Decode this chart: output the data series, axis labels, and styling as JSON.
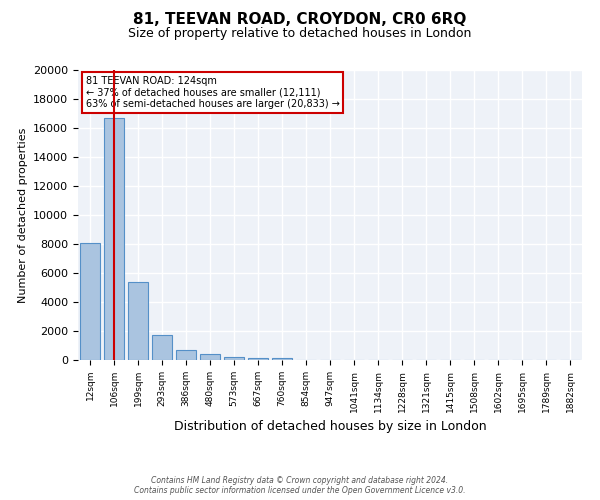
{
  "title": "81, TEEVAN ROAD, CROYDON, CR0 6RQ",
  "subtitle": "Size of property relative to detached houses in London",
  "xlabel": "Distribution of detached houses by size in London",
  "ylabel": "Number of detached properties",
  "bin_labels": [
    "12sqm",
    "106sqm",
    "199sqm",
    "293sqm",
    "386sqm",
    "480sqm",
    "573sqm",
    "667sqm",
    "760sqm",
    "854sqm",
    "947sqm",
    "1041sqm",
    "1134sqm",
    "1228sqm",
    "1321sqm",
    "1415sqm",
    "1508sqm",
    "1602sqm",
    "1695sqm",
    "1789sqm",
    "1882sqm"
  ],
  "bar_values": [
    8050,
    16700,
    5350,
    1750,
    720,
    380,
    220,
    170,
    160,
    0,
    0,
    0,
    0,
    0,
    0,
    0,
    0,
    0,
    0,
    0,
    0
  ],
  "bar_color": "#aac4e0",
  "bar_edge_color": "#5590c8",
  "background_color": "#eef2f8",
  "grid_color": "#ffffff",
  "red_line_x": 1,
  "red_line_color": "#cc0000",
  "annotation_text": "81 TEEVAN ROAD: 124sqm\n← 37% of detached houses are smaller (12,111)\n63% of semi-detached houses are larger (20,833) →",
  "annotation_box_color": "#ffffff",
  "annotation_box_edge": "#cc0000",
  "ylim": [
    0,
    20000
  ],
  "yticks": [
    0,
    2000,
    4000,
    6000,
    8000,
    10000,
    12000,
    14000,
    16000,
    18000,
    20000
  ],
  "footer_line1": "Contains HM Land Registry data © Crown copyright and database right 2024.",
  "footer_line2": "Contains public sector information licensed under the Open Government Licence v3.0."
}
